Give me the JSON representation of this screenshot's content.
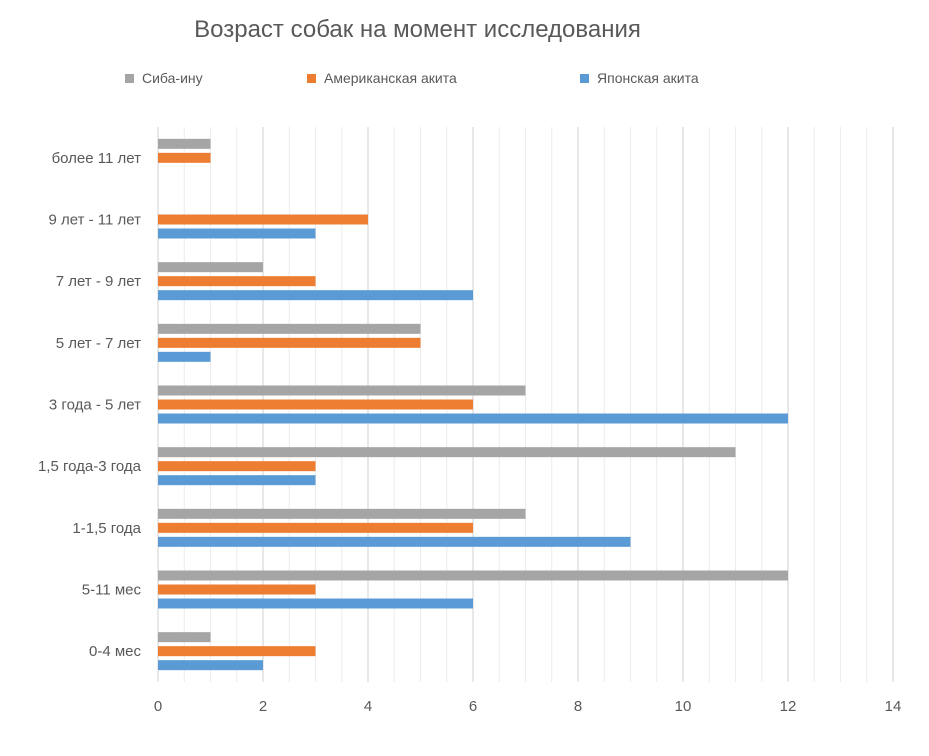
{
  "chart_data": {
    "type": "bar",
    "orientation": "horizontal",
    "title": "Возраст собак на момент исследования",
    "xlabel": "",
    "ylabel": "",
    "xlim": [
      0,
      14
    ],
    "x_ticks": [
      "0",
      "2",
      "4",
      "6",
      "8",
      "10",
      "12",
      "14"
    ],
    "grid": "vertical, minor every 0.5",
    "legend_position": "top",
    "categories": [
      "0-4 мес",
      "5-11 мес",
      "1-1,5 года",
      "1,5 года-3 года",
      "3 года - 5 лет",
      "5 лет - 7 лет",
      "7 лет - 9 лет",
      "9 лет - 11 лет",
      "более 11 лет"
    ],
    "series": [
      {
        "name": "Сиба-ину",
        "color": "#a5a5a5",
        "values": [
          1,
          12,
          7,
          11,
          7,
          5,
          2,
          0,
          1
        ]
      },
      {
        "name": "Американская акита",
        "color": "#ed7d31",
        "values": [
          3,
          3,
          6,
          3,
          6,
          5,
          3,
          4,
          1
        ]
      },
      {
        "name": "Японская акита",
        "color": "#5b9bd5",
        "values": [
          2,
          6,
          9,
          3,
          12,
          1,
          6,
          3,
          0
        ]
      }
    ]
  }
}
